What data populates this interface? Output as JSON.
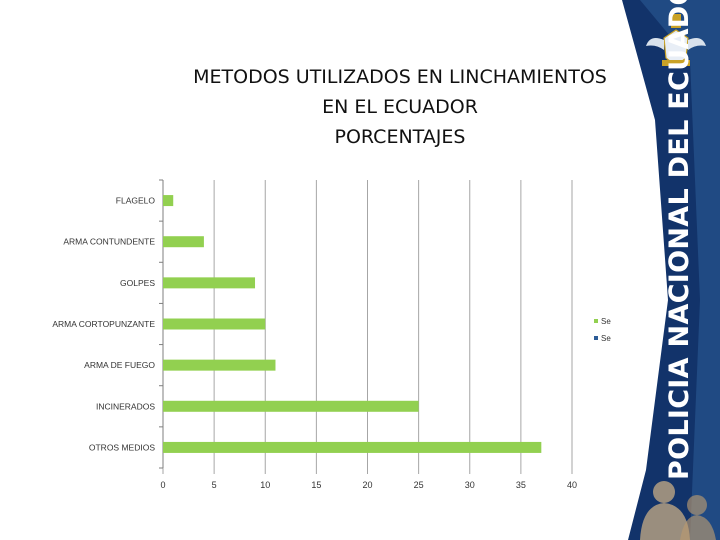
{
  "slide": {
    "title_lines": [
      "METODOS UTILIZADOS EN LINCHAMIENTOS",
      "EN EL ECUADOR",
      "PORCENTAJES"
    ],
    "brand_text": "POLICIA NACIONAL DEL ECUADOR",
    "colors": {
      "bar": "#92d050",
      "banner_dark": "#12336a",
      "banner_mid": "#2c5c97",
      "axis": "#7f7f7f"
    }
  },
  "chart_data": {
    "type": "bar",
    "orientation": "horizontal",
    "title": "METODOS UTILIZADOS EN LINCHAMIENTOS EN EL ECUADOR PORCENTAJES",
    "categories": [
      "FLAGELO",
      "ARMA CONTUNDENTE",
      "GOLPES",
      "ARMA CORTOPUNZANTE",
      "ARMA DE FUEGO",
      "INCINERADOS",
      "OTROS MEDIOS"
    ],
    "series": [
      {
        "name": "Se",
        "values": [
          1,
          4,
          9,
          10,
          11,
          25,
          37
        ]
      },
      {
        "name": "Se",
        "values": [
          0,
          0,
          0,
          0,
          0,
          0,
          0
        ]
      }
    ],
    "xlim": [
      0,
      40
    ],
    "xticks": [
      "0",
      "5",
      "10",
      "15",
      "20",
      "25",
      "30",
      "35",
      "40"
    ],
    "grid": true,
    "legend": "right",
    "xlabel": "",
    "ylabel": ""
  }
}
